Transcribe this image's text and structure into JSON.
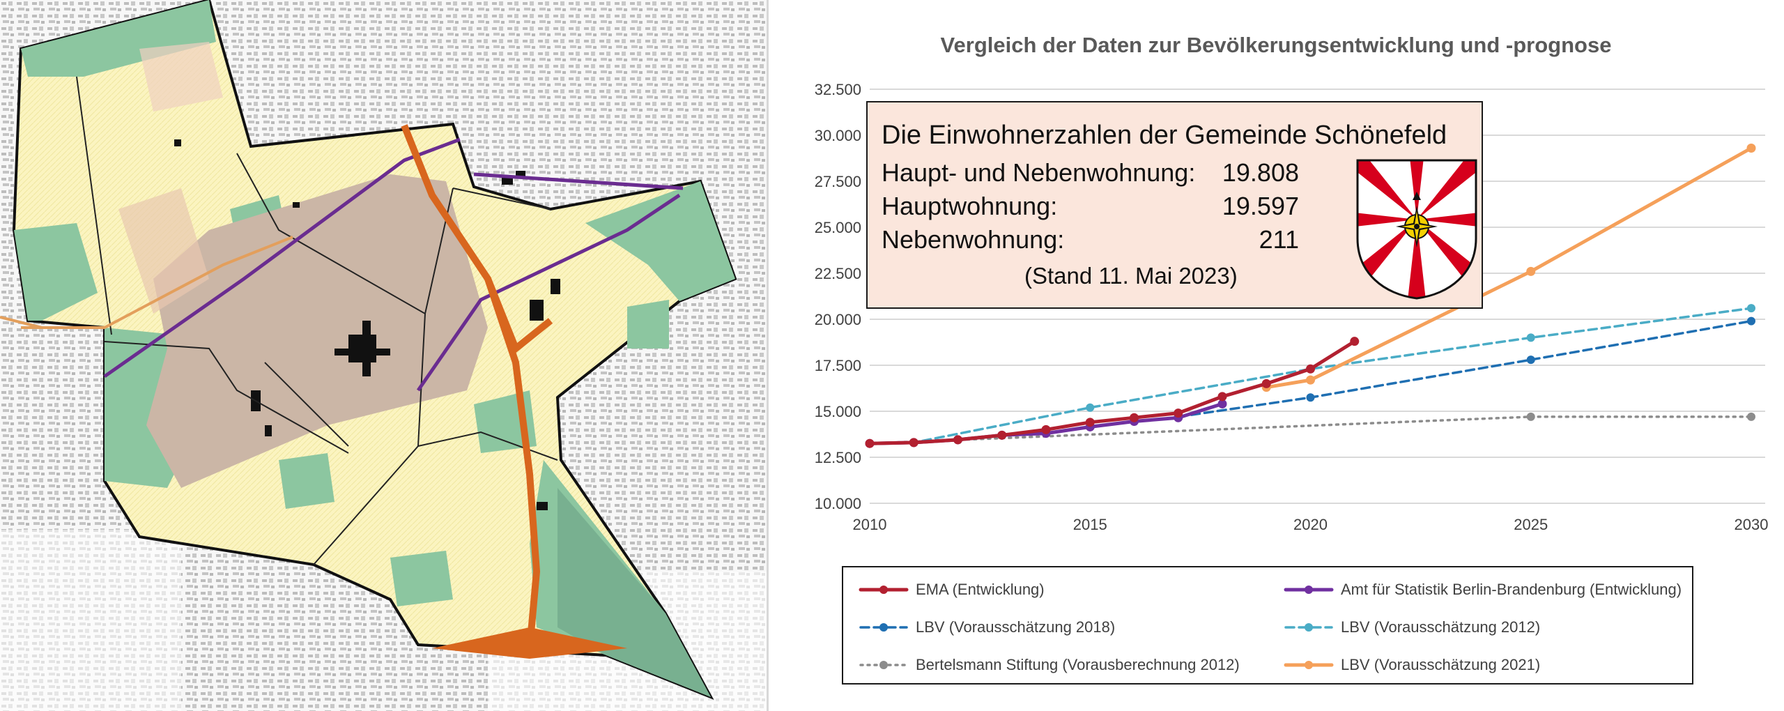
{
  "map": {
    "description_icon": "municipality-land-use-map"
  },
  "chart_data": {
    "type": "line",
    "title": "Vergleich der Daten zur Bevölkerungsentwicklung und -prognose",
    "xlabel": "",
    "ylabel": "",
    "xlim": [
      2010,
      2030
    ],
    "ylim": [
      10000,
      32500
    ],
    "x_ticks": [
      2010,
      2015,
      2020,
      2025,
      2030
    ],
    "x_tick_labels": [
      "2010",
      "2015",
      "2020",
      "2025",
      "2030"
    ],
    "y_ticks": [
      10000,
      12500,
      15000,
      17500,
      20000,
      22500,
      25000,
      27500,
      30000,
      32500
    ],
    "y_tick_labels": [
      "10.000",
      "12.500",
      "15.000",
      "17.500",
      "20.000",
      "22.500",
      "25.000",
      "27.500",
      "30.000",
      "32.500"
    ],
    "grid": true,
    "legend_position": "bottom",
    "series": [
      {
        "key": "ema",
        "name": "EMA (Entwicklung)",
        "color": "#b22030",
        "dash": "solid",
        "x": [
          2010,
          2011,
          2012,
          2013,
          2014,
          2015,
          2016,
          2017,
          2018,
          2019,
          2020,
          2021
        ],
        "y": [
          13250,
          13300,
          13450,
          13700,
          14000,
          14400,
          14650,
          14900,
          15800,
          16500,
          17300,
          18800
        ]
      },
      {
        "key": "amt",
        "name": "Amt für Statistik Berlin-Brandenburg (Entwicklung)",
        "color": "#7030a0",
        "dash": "solid",
        "x": [
          2010,
          2011,
          2012,
          2013,
          2014,
          2015,
          2016,
          2017,
          2018
        ],
        "y": [
          13250,
          13300,
          13450,
          13700,
          13800,
          14150,
          14450,
          14650,
          15400
        ]
      },
      {
        "key": "lbv2018",
        "name": "LBV (Vorausschätzung 2018)",
        "color": "#1f6fb2",
        "dash": "dashed",
        "x": [
          2017,
          2020,
          2025,
          2030
        ],
        "y": [
          14700,
          15750,
          17800,
          19900
        ]
      },
      {
        "key": "lbv2012",
        "name": "LBV  (Vorausschätzung 2012)",
        "color": "#4aacc6",
        "dash": "dashed",
        "x": [
          2010,
          2011,
          2015,
          2020,
          2025,
          2030
        ],
        "y": [
          13250,
          13300,
          15200,
          17300,
          19000,
          20600
        ]
      },
      {
        "key": "bertelsmann",
        "name": "Bertelsmann Stiftung  (Vorausberechnung 2012)",
        "color": "#8c8c8c",
        "dash": "dotted",
        "x": [
          2010,
          2025,
          2030
        ],
        "y": [
          13250,
          14700,
          14700
        ]
      },
      {
        "key": "lbv2021",
        "name": "LBV (Vorausschätzung 2021)",
        "color": "#f5a05a",
        "dash": "solid",
        "x": [
          2019,
          2020,
          2025,
          2030
        ],
        "y": [
          16300,
          16700,
          22600,
          29300
        ]
      }
    ]
  },
  "info_box": {
    "title": "Die Einwohnerzahlen der Gemeinde Schönefeld",
    "rows": [
      {
        "label": "Haupt- und Nebenwohnung:",
        "value": "19.808"
      },
      {
        "label": "Hauptwohnung:",
        "value": "19.597"
      },
      {
        "label": "Nebenwohnung:",
        "value": "211"
      }
    ],
    "stand": "(Stand 11. Mai 2023)",
    "coat_of_arms_icon": "schoenefeld-coat-of-arms-icon"
  },
  "colors": {
    "grid": "#d9d9d9",
    "info_bg": "#fbe6dc",
    "map_boundary_fill": "#fbf4c0",
    "map_airport": "#cbb6a6",
    "map_green": "#8cc6a0",
    "map_road": "#d8661e",
    "map_rail": "#6a2c90"
  }
}
